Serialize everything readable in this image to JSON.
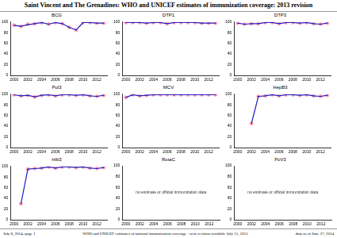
{
  "title": "Saint Vincent and The Grenadines: WHO and UNICEF estimates of immunization coverage: 2013 revision",
  "footer": [
    "July 8, 2014; page 1",
    "WHO and UNICEF estimates of national immunization coverage - next revision available July 15, 2015",
    "data as of June 27, 2014"
  ],
  "chart_data": [
    {
      "type": "line",
      "title": "BCG",
      "x": [
        2000,
        2001,
        2002,
        2003,
        2004,
        2005,
        2006,
        2007,
        2008,
        2009,
        2010,
        2011,
        2012,
        2013
      ],
      "xlim": [
        1999.5,
        2013.5
      ],
      "xticks": [
        2000,
        2002,
        2004,
        2006,
        2008,
        2010,
        2012
      ],
      "ylim": [
        0,
        100
      ],
      "yticks": [
        0,
        20,
        40,
        60,
        80,
        100
      ],
      "grid": false,
      "series": [
        {
          "type": "line",
          "color": "#1f1fbf",
          "values": [
            94,
            92,
            95,
            97,
            99,
            96,
            99,
            97,
            90,
            85,
            99,
            99,
            98,
            98
          ]
        },
        {
          "type": "scatter",
          "marker": "star",
          "color": "#ff4f7a",
          "values": [
            94,
            92,
            96,
            97,
            99,
            96,
            99,
            97,
            90,
            85,
            99,
            99,
            98,
            98
          ]
        }
      ]
    },
    {
      "type": "line",
      "title": "DTP1",
      "x": [
        2000,
        2001,
        2002,
        2003,
        2004,
        2005,
        2006,
        2007,
        2008,
        2009,
        2010,
        2011,
        2012,
        2013
      ],
      "xlim": [
        1999.5,
        2013.5
      ],
      "xticks": [
        2000,
        2002,
        2004,
        2006,
        2008,
        2010,
        2012
      ],
      "ylim": [
        0,
        100
      ],
      "yticks": [
        0,
        20,
        40,
        60,
        80,
        100
      ],
      "grid": false,
      "series": [
        {
          "type": "line",
          "color": "#1f1fbf",
          "values": [
            99,
            99,
            99,
            98,
            99,
            99,
            97,
            99,
            99,
            99,
            99,
            98,
            98,
            98
          ]
        },
        {
          "type": "scatter",
          "marker": "star",
          "color": "#ff4f7a",
          "values": [
            99,
            99,
            99,
            98,
            99,
            99,
            97,
            99,
            99,
            99,
            99,
            98,
            98,
            98
          ]
        }
      ]
    },
    {
      "type": "line",
      "title": "DTP3",
      "x": [
        2000,
        2001,
        2002,
        2003,
        2004,
        2005,
        2006,
        2007,
        2008,
        2009,
        2010,
        2011,
        2012,
        2013
      ],
      "xlim": [
        1999.5,
        2013.5
      ],
      "xticks": [
        2000,
        2002,
        2004,
        2006,
        2008,
        2010,
        2012
      ],
      "ylim": [
        0,
        100
      ],
      "yticks": [
        0,
        20,
        40,
        60,
        80,
        100
      ],
      "grid": false,
      "series": [
        {
          "type": "line",
          "color": "#1f1fbf",
          "values": [
            98,
            96,
            97,
            97,
            99,
            99,
            97,
            99,
            99,
            98,
            99,
            97,
            96,
            98
          ]
        },
        {
          "type": "scatter",
          "marker": "star",
          "color": "#ff4f7a",
          "values": [
            98,
            96,
            97,
            97,
            99,
            99,
            97,
            99,
            99,
            98,
            99,
            97,
            96,
            98
          ]
        }
      ]
    },
    {
      "type": "line",
      "title": "Pol3",
      "x": [
        2000,
        2001,
        2002,
        2003,
        2004,
        2005,
        2006,
        2007,
        2008,
        2009,
        2010,
        2011,
        2012,
        2013
      ],
      "xlim": [
        1999.5,
        2013.5
      ],
      "xticks": [
        2000,
        2002,
        2004,
        2006,
        2008,
        2010,
        2012
      ],
      "ylim": [
        0,
        100
      ],
      "yticks": [
        0,
        20,
        40,
        60,
        80,
        100
      ],
      "grid": false,
      "series": [
        {
          "type": "line",
          "color": "#1f1fbf",
          "values": [
            99,
            97,
            98,
            95,
            98,
            99,
            97,
            99,
            99,
            98,
            99,
            97,
            96,
            98
          ]
        },
        {
          "type": "scatter",
          "marker": "star",
          "color": "#ff4f7a",
          "values": [
            99,
            97,
            98,
            95,
            98,
            99,
            97,
            99,
            99,
            98,
            99,
            97,
            96,
            98
          ]
        }
      ]
    },
    {
      "type": "line",
      "title": "MCV",
      "x": [
        2000,
        2001,
        2002,
        2003,
        2004,
        2005,
        2006,
        2007,
        2008,
        2009,
        2010,
        2011,
        2012,
        2013
      ],
      "xlim": [
        1999.5,
        2013.5
      ],
      "xticks": [
        2000,
        2002,
        2004,
        2006,
        2008,
        2010,
        2012
      ],
      "ylim": [
        0,
        100
      ],
      "yticks": [
        0,
        20,
        40,
        60,
        80,
        100
      ],
      "grid": false,
      "series": [
        {
          "type": "line",
          "color": "#1f1fbf",
          "values": [
            94,
            99,
            97,
            98,
            99,
            99,
            99,
            99,
            99,
            99,
            99,
            99,
            99,
            99
          ]
        },
        {
          "type": "scatter",
          "marker": "star",
          "color": "#ff4f7a",
          "values": [
            94,
            99,
            97,
            98,
            99,
            99,
            99,
            99,
            99,
            99,
            99,
            99,
            99,
            99
          ]
        }
      ]
    },
    {
      "type": "line",
      "title": "HepB3",
      "x": [
        2000,
        2001,
        2002,
        2003,
        2004,
        2005,
        2006,
        2007,
        2008,
        2009,
        2010,
        2011,
        2012,
        2013
      ],
      "xlim": [
        1999.5,
        2013.5
      ],
      "xticks": [
        2000,
        2002,
        2004,
        2006,
        2008,
        2010,
        2012
      ],
      "ylim": [
        0,
        100
      ],
      "yticks": [
        0,
        20,
        40,
        60,
        80,
        100
      ],
      "grid": false,
      "series": [
        {
          "type": "line",
          "color": "#1f1fbf",
          "values": [
            null,
            null,
            45,
            96,
            97,
            99,
            97,
            99,
            99,
            98,
            99,
            97,
            96,
            98
          ]
        },
        {
          "type": "scatter",
          "marker": "star",
          "color": "#ff4f7a",
          "values": [
            null,
            null,
            45,
            96,
            97,
            99,
            97,
            99,
            99,
            98,
            99,
            97,
            96,
            98
          ]
        }
      ]
    },
    {
      "type": "line",
      "title": "Hib3",
      "x": [
        2000,
        2001,
        2002,
        2003,
        2004,
        2005,
        2006,
        2007,
        2008,
        2009,
        2010,
        2011,
        2012,
        2013
      ],
      "xlim": [
        1999.5,
        2013.5
      ],
      "xticks": [
        2000,
        2002,
        2004,
        2006,
        2008,
        2010,
        2012
      ],
      "ylim": [
        0,
        100
      ],
      "yticks": [
        0,
        20,
        40,
        60,
        80,
        100
      ],
      "grid": false,
      "series": [
        {
          "type": "line",
          "color": "#1f1fbf",
          "values": [
            null,
            30,
            95,
            96,
            97,
            99,
            97,
            99,
            99,
            98,
            99,
            97,
            96,
            98
          ]
        },
        {
          "type": "scatter",
          "marker": "star",
          "color": "#ff4f7a",
          "values": [
            null,
            30,
            95,
            96,
            97,
            99,
            97,
            99,
            99,
            98,
            99,
            97,
            96,
            98
          ]
        }
      ]
    },
    {
      "type": "line",
      "title": "RotaC",
      "x": [
        2000,
        2001,
        2002,
        2003,
        2004,
        2005,
        2006,
        2007,
        2008,
        2009,
        2010,
        2011,
        2012,
        2013
      ],
      "xlim": [
        1999.5,
        2013.5
      ],
      "xticks": [
        2000,
        2002,
        2004,
        2006,
        2008,
        2010,
        2012
      ],
      "ylim": [
        0,
        100
      ],
      "yticks": [
        0,
        20,
        40,
        60,
        80,
        100
      ],
      "grid": false,
      "annotation": "no estimate or official immunization data",
      "series": []
    },
    {
      "type": "line",
      "title": "PcV3",
      "x": [
        2000,
        2001,
        2002,
        2003,
        2004,
        2005,
        2006,
        2007,
        2008,
        2009,
        2010,
        2011,
        2012,
        2013
      ],
      "xlim": [
        1999.5,
        2013.5
      ],
      "xticks": [
        2000,
        2002,
        2004,
        2006,
        2008,
        2010,
        2012
      ],
      "ylim": [
        0,
        100
      ],
      "yticks": [
        0,
        20,
        40,
        60,
        80,
        100
      ],
      "grid": false,
      "annotation": "no estimate or official immunization data",
      "series": []
    }
  ]
}
